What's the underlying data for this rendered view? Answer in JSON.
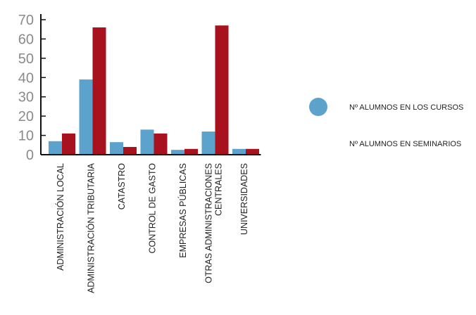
{
  "chart_data": {
    "type": "bar",
    "categories": [
      [
        "ADMINISTRACIÓN LOCAL"
      ],
      [
        "ADMINISTRACIÓN TRIBUTARIA"
      ],
      [
        "CATASTRO"
      ],
      [
        "CONTROL DE GASTO"
      ],
      [
        "EMPRESAS PÚBLICAS"
      ],
      [
        "OTRAS ADMINISTRACIONES",
        "CENTRALES"
      ],
      [
        "UNIVERSIDADES"
      ]
    ],
    "series": [
      {
        "name": "Nº ALUMNOS EN LOS CURSOS",
        "color": "#5ba3cc",
        "values": [
          7,
          39,
          6.5,
          13,
          2.5,
          12,
          3
        ]
      },
      {
        "name": "Nº ALUMNOS EN SEMINARIOS",
        "color": "#a8121e",
        "values": [
          11,
          66,
          4,
          11,
          3,
          67,
          3
        ]
      }
    ],
    "yticks": [
      0,
      10,
      20,
      30,
      40,
      50,
      60,
      70
    ],
    "ylim": [
      0,
      70
    ],
    "legend_position": "right",
    "grid": false
  }
}
